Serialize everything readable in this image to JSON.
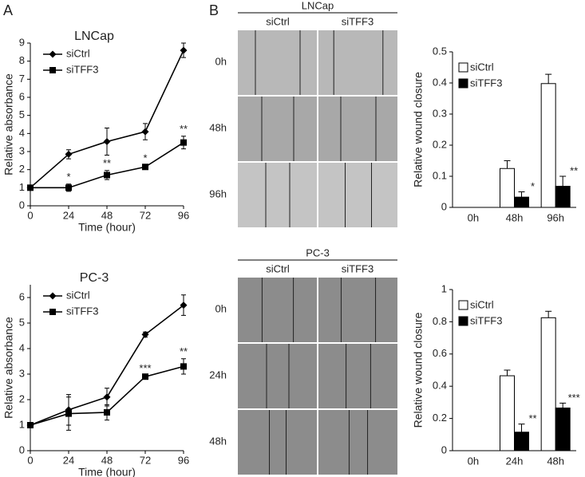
{
  "panel_labels": [
    "A",
    "B"
  ],
  "micrographs": [
    {
      "title": "LNCap",
      "columns": [
        "siCtrl",
        "siTFF3"
      ],
      "rows": [
        "0h",
        "48h",
        "96h"
      ]
    },
    {
      "title": "PC-3",
      "columns": [
        "siCtrl",
        "siTFF3"
      ],
      "rows": [
        "0h",
        "24h",
        "48h"
      ]
    }
  ],
  "chart_data": [
    {
      "type": "line",
      "title": "LNCap",
      "x_label": "Time (hour)",
      "y_label": "Relative absorbance",
      "x": [
        0,
        24,
        48,
        72,
        96
      ],
      "xlim": [
        0,
        96
      ],
      "xticks": [
        0,
        24,
        48,
        72,
        96
      ],
      "ylim": [
        0,
        9
      ],
      "yticks": [
        0,
        1,
        2,
        3,
        4,
        5,
        6,
        7,
        8,
        9
      ],
      "series": [
        {
          "name": "siCtrl",
          "color": "#000000",
          "marker": "diamond",
          "values": [
            1,
            2.85,
            3.55,
            4.1,
            8.6
          ],
          "errors": [
            0,
            0.25,
            0.75,
            0.45,
            0.4
          ]
        },
        {
          "name": "siTFF3",
          "color": "#000000",
          "marker": "square",
          "values": [
            1,
            1.0,
            1.7,
            2.15,
            3.5
          ],
          "errors": [
            0.05,
            0.2,
            0.25,
            0.1,
            0.35
          ],
          "significance": [
            null,
            "*",
            "**",
            "*",
            "**"
          ]
        }
      ]
    },
    {
      "type": "line",
      "title": "PC-3",
      "x_label": "Time (hour)",
      "y_label": "Relative absorbance",
      "x": [
        0,
        24,
        48,
        72,
        96
      ],
      "xlim": [
        0,
        96
      ],
      "xticks": [
        0,
        24,
        48,
        72,
        96
      ],
      "ylim": [
        0,
        6.5
      ],
      "yticks": [
        0,
        1,
        2,
        3,
        4,
        5,
        6
      ],
      "series": [
        {
          "name": "siCtrl",
          "color": "#000000",
          "marker": "diamond",
          "values": [
            1,
            1.6,
            2.1,
            4.55,
            5.7
          ],
          "errors": [
            0.1,
            0.6,
            0.35,
            0.1,
            0.4
          ]
        },
        {
          "name": "siTFF3",
          "color": "#000000",
          "marker": "square",
          "values": [
            1,
            1.45,
            1.5,
            2.9,
            3.3
          ],
          "errors": [
            0.1,
            0.65,
            0.3,
            0.05,
            0.3
          ],
          "significance": [
            null,
            null,
            null,
            "***",
            "**"
          ]
        }
      ]
    },
    {
      "type": "bar",
      "y_label": "Relative wound closure",
      "categories": [
        "0h",
        "48h",
        "96h"
      ],
      "ylim": [
        0,
        0.5
      ],
      "yticks": [
        0,
        0.1,
        0.2,
        0.3,
        0.4,
        0.5
      ],
      "series": [
        {
          "name": "siCtrl",
          "color": "#ffffff",
          "values": [
            null,
            0.125,
            0.398
          ],
          "errors": [
            null,
            0.025,
            0.03
          ]
        },
        {
          "name": "siTFF3",
          "color": "#000000",
          "values": [
            null,
            0.033,
            0.068
          ],
          "errors": [
            null,
            0.017,
            0.032
          ],
          "significance": [
            null,
            "*",
            "**"
          ]
        }
      ]
    },
    {
      "type": "bar",
      "y_label": "Relative wound closure",
      "categories": [
        "0h",
        "24h",
        "48h"
      ],
      "ylim": [
        0,
        1
      ],
      "yticks": [
        0,
        0.2,
        0.4,
        0.6,
        0.8,
        1
      ],
      "series": [
        {
          "name": "siCtrl",
          "color": "#ffffff",
          "values": [
            null,
            0.465,
            0.825
          ],
          "errors": [
            null,
            0.035,
            0.04
          ]
        },
        {
          "name": "siTFF3",
          "color": "#000000",
          "values": [
            null,
            0.115,
            0.265
          ],
          "errors": [
            null,
            0.05,
            0.03
          ],
          "significance": [
            null,
            "**",
            "***"
          ]
        }
      ]
    }
  ]
}
